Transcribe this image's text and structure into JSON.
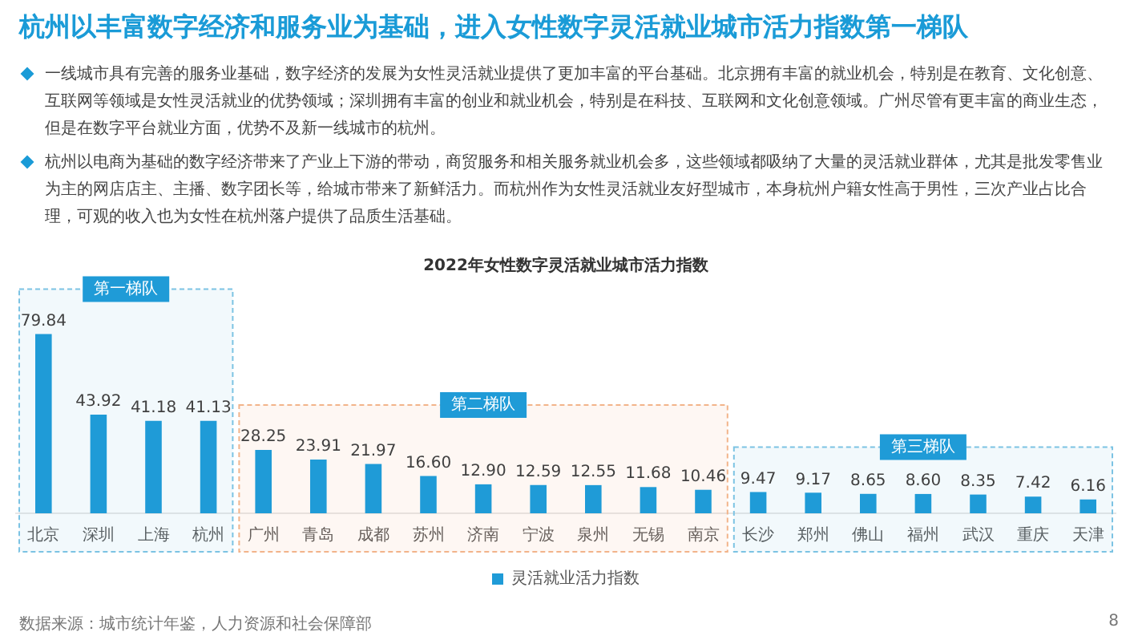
{
  "chart_data": {
    "type": "bar",
    "title": "杭州以丰富数字经济和服务业为基础，进入女性数字灵活就业城市活力指数第一梯队",
    "subtitle": "2022年女性数字灵活就业城市活力指数",
    "categories": [
      "北京",
      "深圳",
      "上海",
      "杭州",
      "广州",
      "青岛",
      "成都",
      "苏州",
      "济南",
      "宁波",
      "泉州",
      "无锡",
      "南京",
      "长沙",
      "郑州",
      "佛山",
      "福州",
      "武汉",
      "重庆",
      "天津"
    ],
    "series": [
      {
        "name": "灵活就业活力指数",
        "color": "#1f9bd7",
        "values": [
          79.84,
          43.92,
          41.18,
          41.13,
          28.25,
          23.91,
          21.97,
          16.6,
          12.9,
          12.59,
          12.55,
          11.68,
          10.46,
          9.47,
          9.17,
          8.65,
          8.6,
          8.35,
          7.42,
          6.16
        ],
        "value_labels": [
          "79.84",
          "43.92",
          "41.18",
          "41.13",
          "28.25",
          "23.91",
          "21.97",
          "16.60",
          "12.90",
          "12.59",
          "12.55",
          "11.68",
          "10.46",
          "9.47",
          "9.17",
          "8.65",
          "8.60",
          "8.35",
          "7.42",
          "6.16"
        ]
      }
    ],
    "tick_labels": "x",
    "grid": false,
    "legend": "bottom",
    "bands": [
      {
        "axis": "x",
        "from": "北京",
        "to": "杭州",
        "label": "第一梯队",
        "color": "#7cc3e3"
      },
      {
        "axis": "x",
        "from": "广州",
        "to": "南京",
        "label": "第二梯队",
        "color": "#f2b48a"
      },
      {
        "axis": "x",
        "from": "长沙",
        "to": "天津",
        "label": "第三梯队",
        "color": "#7cc3e3"
      }
    ],
    "annotations": [
      "一线城市具有完善的服务业基础，数字经济的发展为女性灵活就业提供了更加丰富的平台基础。北京拥有丰富的就业机会，特别是在教育、文化创意、互联网等领域是女性灵活就业的优势领域；深圳拥有丰富的创业和就业机会，特别是在科技、互联网和文化创意领域。广州尽管有更丰富的商业生态，但是在数字平台就业方面，优势不及新一线城市的杭州。",
      "杭州以电商为基础的数字经济带来了产业上下游的带动，商贸服务和相关服务就业机会多，这些领域都吸纳了大量的灵活就业群体，尤其是批发零售业为主的网店店主、主播、数字团长等，给城市带来了新鲜活力。而杭州作为女性灵活就业友好型城市，本身杭州户籍女性高于男性，三次产业占比合理，可观的收入也为女性在杭州落户提供了品质生活基础。",
      "数据来源：城市统计年鉴，人力资源和社会保障部",
      "8"
    ]
  }
}
